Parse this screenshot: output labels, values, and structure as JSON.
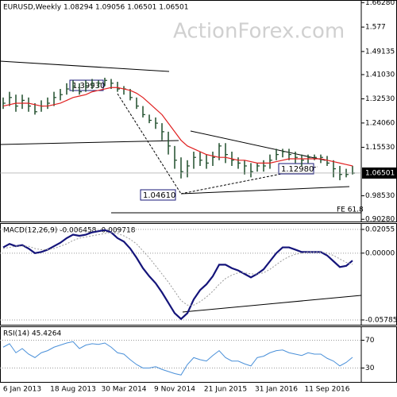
{
  "chart_data": [
    {
      "type": "ohlc",
      "title": "EURUSD,Weekly  1.08294 1.09056 1.06501 1.06501",
      "watermark": "ActionForex.com",
      "categories": [
        null,
        null,
        null,
        "6 Jan 2013",
        null,
        null,
        null,
        null,
        null,
        null,
        null,
        "18 Aug 2013",
        null,
        null,
        null,
        null,
        null,
        null,
        null,
        "30 Mar 2014",
        null,
        null,
        null,
        null,
        null,
        null,
        null,
        "9 Nov 2014",
        null,
        null,
        null,
        null,
        null,
        null,
        null,
        "21 Jun 2015",
        null,
        null,
        null,
        null,
        null,
        null,
        null,
        "31 Jan 2016",
        null,
        null,
        null,
        null,
        null,
        null,
        null,
        "11 Sep 2016",
        null,
        null,
        null,
        null
      ],
      "color": "#1f4d2b",
      "high": [
        1.33,
        1.35,
        1.34,
        1.34,
        1.33,
        1.31,
        1.32,
        1.33,
        1.35,
        1.36,
        1.38,
        1.39,
        1.38,
        1.39,
        1.395,
        1.39,
        1.3993,
        1.395,
        1.385,
        1.37,
        1.36,
        1.33,
        1.3,
        1.27,
        1.26,
        1.24,
        1.21,
        1.16,
        1.12,
        1.11,
        1.14,
        1.14,
        1.13,
        1.14,
        1.17,
        1.17,
        1.14,
        1.12,
        1.11,
        1.1,
        1.1,
        1.11,
        1.13,
        1.15,
        1.15,
        1.15,
        1.14,
        1.13,
        1.1298,
        1.13,
        1.13,
        1.125,
        1.11,
        1.09,
        1.08,
        1.09056
      ],
      "low": [
        1.29,
        1.3,
        1.28,
        1.29,
        1.28,
        1.27,
        1.28,
        1.29,
        1.3,
        1.32,
        1.34,
        1.35,
        1.34,
        1.35,
        1.36,
        1.365,
        1.37,
        1.36,
        1.35,
        1.34,
        1.32,
        1.29,
        1.26,
        1.24,
        1.22,
        1.18,
        1.13,
        1.08,
        1.0461,
        1.05,
        1.08,
        1.09,
        1.08,
        1.09,
        1.11,
        1.1,
        1.09,
        1.08,
        1.06,
        1.05,
        1.07,
        1.07,
        1.08,
        1.11,
        1.12,
        1.11,
        1.1,
        1.09,
        1.1,
        1.11,
        1.1,
        1.09,
        1.05,
        1.04,
        1.05,
        1.06
      ],
      "close": [
        1.31,
        1.33,
        1.3,
        1.32,
        1.3,
        1.28,
        1.3,
        1.31,
        1.33,
        1.34,
        1.36,
        1.37,
        1.35,
        1.37,
        1.38,
        1.38,
        1.39,
        1.38,
        1.36,
        1.36,
        1.33,
        1.3,
        1.27,
        1.25,
        1.24,
        1.21,
        1.16,
        1.11,
        1.07,
        1.09,
        1.12,
        1.11,
        1.1,
        1.12,
        1.16,
        1.13,
        1.11,
        1.1,
        1.09,
        1.07,
        1.09,
        1.09,
        1.11,
        1.13,
        1.14,
        1.13,
        1.12,
        1.11,
        1.12,
        1.12,
        1.12,
        1.1,
        1.08,
        1.06,
        1.06,
        1.06501
      ],
      "ma": {
        "color": "#e02020",
        "values": [
          1.3,
          1.305,
          1.31,
          1.31,
          1.31,
          1.305,
          1.3,
          1.3,
          1.305,
          1.31,
          1.32,
          1.33,
          1.335,
          1.34,
          1.35,
          1.355,
          1.36,
          1.365,
          1.365,
          1.36,
          1.355,
          1.345,
          1.33,
          1.31,
          1.29,
          1.27,
          1.24,
          1.21,
          1.18,
          1.16,
          1.15,
          1.14,
          1.13,
          1.125,
          1.12,
          1.12,
          1.115,
          1.11,
          1.11,
          1.105,
          1.1,
          1.1,
          1.1,
          1.105,
          1.11,
          1.115,
          1.115,
          1.115,
          1.115,
          1.115,
          1.115,
          1.11,
          1.105,
          1.1,
          1.095,
          1.09
        ]
      },
      "ylim": [
        0.895,
        1.672
      ],
      "yticks": [
        {
          "value": 1.6628,
          "label": "1.66280"
        },
        1.577,
        1.49135,
        {
          "value": 1.4103,
          "label": "1.41030"
        },
        {
          "value": 1.3253,
          "label": "1.32530"
        },
        {
          "value": 1.2406,
          "label": "1.24060"
        },
        {
          "value": 1.1553,
          "label": "1.15530"
        },
        {
          "value": 0.9853,
          "label": "0.98530"
        },
        {
          "value": 0.9028,
          "label": "0.90280"
        }
      ],
      "last_price": 1.06501,
      "annotations": [
        {
          "value": 1.3993,
          "label": "1.39930"
        },
        {
          "value": 1.0461,
          "label": "1.04610"
        },
        {
          "value": 1.1298,
          "label": "1.12980"
        },
        "FE 61.8"
      ]
    },
    {
      "type": "line",
      "title": "MACD(12,26,9) -0.006458 -0.009718",
      "ylim": [
        -0.062,
        0.026
      ],
      "yticks": [
        0.02055,
        {
          "value": 0,
          "label": "0.00000"
        },
        -0.057859
      ],
      "series": [
        {
          "color": "#14147a",
          "values": [
            0.005,
            0.008,
            0.006,
            0.007,
            0.004,
            0,
            0.001,
            0.003,
            0.006,
            0.009,
            0.013,
            0.016,
            0.015,
            0.016,
            0.018,
            0.019,
            0.02,
            0.018,
            0.013,
            0.01,
            0.004,
            -0.004,
            -0.013,
            -0.02,
            -0.026,
            -0.034,
            -0.043,
            -0.052,
            -0.057,
            -0.052,
            -0.04,
            -0.032,
            -0.027,
            -0.02,
            -0.01,
            -0.01,
            -0.013,
            -0.015,
            -0.018,
            -0.021,
            -0.018,
            -0.014,
            -0.007,
            0,
            0.005,
            0.005,
            0.003,
            0.001,
            0.001,
            0.001,
            0.001,
            -0.002,
            -0.007,
            -0.012,
            -0.011,
            -0.006458
          ]
        },
        {
          "color": "#9a9a9a",
          "dashed": true,
          "values": [
            0.004,
            0.005,
            0.006,
            0.006,
            0.006,
            0.004,
            0.003,
            0.003,
            0.004,
            0.006,
            0.008,
            0.011,
            0.013,
            0.014,
            0.015,
            0.016,
            0.017,
            0.018,
            0.017,
            0.015,
            0.012,
            0.008,
            0.002,
            -0.004,
            -0.011,
            -0.018,
            -0.025,
            -0.033,
            -0.041,
            -0.045,
            -0.045,
            -0.042,
            -0.038,
            -0.033,
            -0.027,
            -0.022,
            -0.019,
            -0.017,
            -0.017,
            -0.018,
            -0.018,
            -0.017,
            -0.014,
            -0.01,
            -0.006,
            -0.003,
            -0.001,
            0,
            0.001,
            0.001,
            0.001,
            0,
            -0.002,
            -0.005,
            -0.008,
            -0.009718
          ]
        }
      ]
    },
    {
      "type": "line",
      "title": "RSI(14) 45.4264",
      "ylim": [
        10,
        90
      ],
      "yticks": [
        70,
        30
      ],
      "series": [
        {
          "color": "#4a90d9",
          "values": [
            60,
            65,
            52,
            58,
            50,
            45,
            52,
            55,
            60,
            63,
            66,
            68,
            58,
            63,
            65,
            64,
            66,
            60,
            52,
            50,
            42,
            35,
            30,
            30,
            32,
            28,
            25,
            22,
            20,
            35,
            45,
            42,
            40,
            48,
            55,
            45,
            40,
            40,
            36,
            33,
            45,
            47,
            52,
            55,
            56,
            52,
            50,
            48,
            52,
            50,
            50,
            44,
            40,
            33,
            38,
            45.4264
          ]
        }
      ]
    }
  ]
}
